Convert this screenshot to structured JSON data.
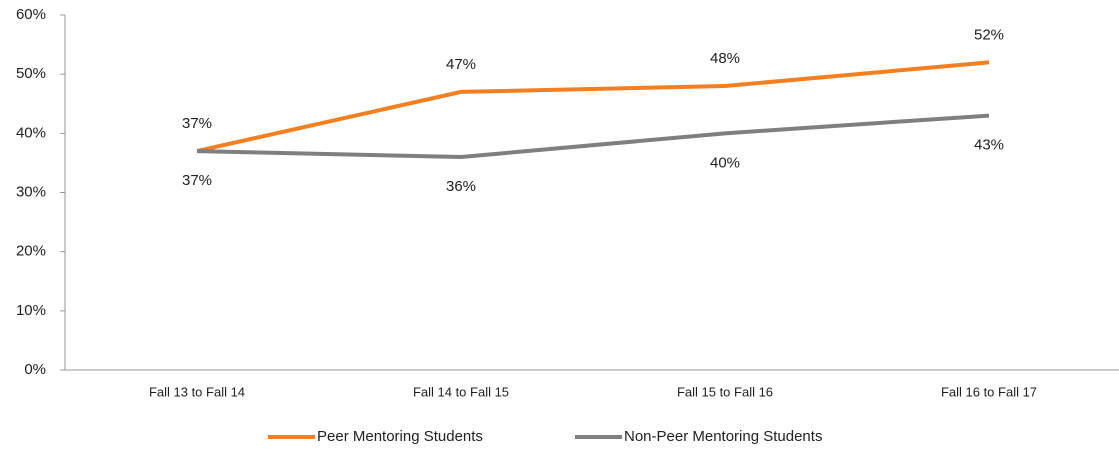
{
  "chart_data": {
    "type": "line",
    "categories": [
      "Fall 13 to Fall 14",
      "Fall 14 to Fall 15",
      "Fall 15 to Fall 16",
      "Fall 16 to Fall 17"
    ],
    "series": [
      {
        "name": "Peer Mentoring Students",
        "color": "#f47f20",
        "values": [
          37,
          47,
          48,
          52
        ],
        "value_labels": [
          "37%",
          "47%",
          "48%",
          "52%"
        ]
      },
      {
        "name": "Non-Peer Mentoring Students",
        "color": "#7f7f7f",
        "values": [
          37,
          36,
          40,
          43
        ],
        "value_labels": [
          "37%",
          "36%",
          "40%",
          "43%"
        ]
      }
    ],
    "ylim": [
      0,
      60
    ],
    "yticks": [
      {
        "value": 0,
        "label": "0%"
      },
      {
        "value": 10,
        "label": "10%"
      },
      {
        "value": 20,
        "label": "20%"
      },
      {
        "value": 30,
        "label": "30%"
      },
      {
        "value": 40,
        "label": "40%"
      },
      {
        "value": 50,
        "label": "50%"
      },
      {
        "value": 60,
        "label": "60%"
      }
    ],
    "grid": false,
    "legend": "bottom"
  }
}
